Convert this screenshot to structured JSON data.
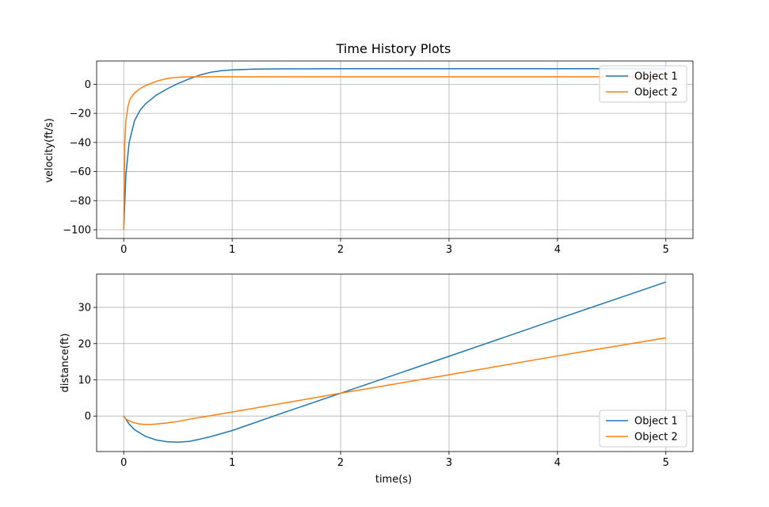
{
  "chart_data": [
    {
      "type": "line",
      "title": "Time History Plots",
      "xlabel": "",
      "ylabel": "velocity(ft/s)",
      "xlim": [
        -0.25,
        5.25
      ],
      "ylim": [
        -106,
        16
      ],
      "xticks": [
        "0",
        "1",
        "2",
        "3",
        "4",
        "5"
      ],
      "yticks": [
        "−100",
        "−80",
        "−60",
        "−40",
        "−20",
        "0"
      ],
      "grid": true,
      "legend": "top-right",
      "series": [
        {
          "name": "Object 1",
          "color": "#1f77b4",
          "x": [
            0,
            0.02,
            0.05,
            0.1,
            0.15,
            0.2,
            0.3,
            0.4,
            0.5,
            0.6,
            0.7,
            0.8,
            0.9,
            1.0,
            1.2,
            1.5,
            2.0,
            3.0,
            4.0,
            5.0
          ],
          "y": [
            -100,
            -62,
            -40,
            -25,
            -18,
            -13.5,
            -7.5,
            -3.2,
            0.5,
            3.6,
            6.3,
            8.2,
            9.3,
            9.9,
            10.4,
            10.6,
            10.7,
            10.7,
            10.7,
            10.7
          ]
        },
        {
          "name": "Object 2",
          "color": "#ff7f0e",
          "x": [
            0,
            0.01,
            0.02,
            0.04,
            0.06,
            0.1,
            0.15,
            0.2,
            0.3,
            0.4,
            0.5,
            0.6,
            0.8,
            1.0,
            2.0,
            3.0,
            4.0,
            5.0
          ],
          "y": [
            -100,
            -40,
            -25,
            -15,
            -10,
            -6,
            -3,
            -1,
            2,
            4,
            4.8,
            5.1,
            5.2,
            5.2,
            5.2,
            5.2,
            5.2,
            5.2
          ]
        }
      ]
    },
    {
      "type": "line",
      "title": "",
      "xlabel": "time(s)",
      "ylabel": "distance(ft)",
      "xlim": [
        -0.25,
        5.25
      ],
      "ylim": [
        -9.8,
        39.2
      ],
      "xticks": [
        "0",
        "1",
        "2",
        "3",
        "4",
        "5"
      ],
      "yticks": [
        "0",
        "10",
        "20",
        "30"
      ],
      "grid": true,
      "legend": "bottom-right",
      "series": [
        {
          "name": "Object 1",
          "color": "#1f77b4",
          "x": [
            0,
            0.05,
            0.1,
            0.2,
            0.3,
            0.4,
            0.5,
            0.6,
            0.7,
            0.8,
            1.0,
            1.5,
            2.0,
            3.0,
            4.0,
            5.0
          ],
          "y": [
            0,
            -2.2,
            -3.8,
            -5.6,
            -6.6,
            -7.1,
            -7.2,
            -7.0,
            -6.4,
            -5.7,
            -4.0,
            1.2,
            6.3,
            16.5,
            26.8,
            37.0
          ]
        },
        {
          "name": "Object 2",
          "color": "#ff7f0e",
          "x": [
            0,
            0.02,
            0.05,
            0.1,
            0.15,
            0.2,
            0.25,
            0.3,
            0.4,
            0.5,
            0.6,
            0.8,
            1.0,
            1.5,
            2.0,
            3.0,
            4.0,
            5.0
          ],
          "y": [
            0,
            -0.8,
            -1.3,
            -1.9,
            -2.2,
            -2.3,
            -2.3,
            -2.2,
            -1.9,
            -1.5,
            -0.9,
            0.1,
            1.1,
            3.7,
            6.3,
            11.4,
            16.6,
            21.6
          ]
        }
      ]
    }
  ]
}
